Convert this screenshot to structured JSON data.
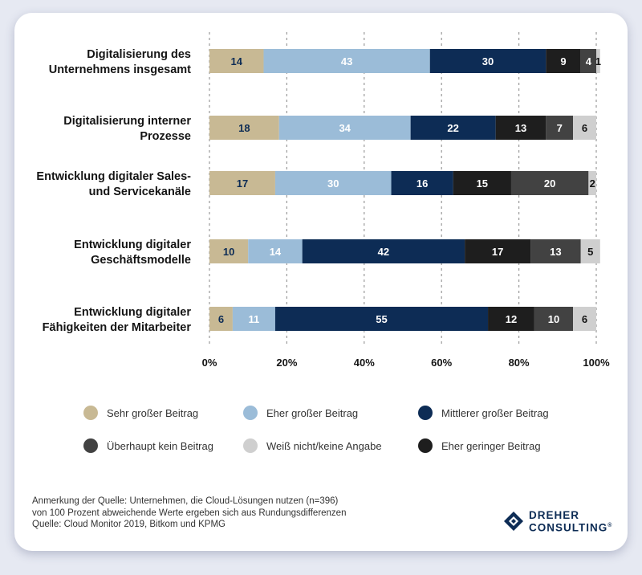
{
  "chart_data": {
    "type": "bar",
    "orientation": "horizontal",
    "stacked": true,
    "categories": [
      [
        "Digitalisierung des",
        "Unternehmens insgesamt"
      ],
      [
        "Digitalisierung interner",
        "Prozesse"
      ],
      [
        "Entwicklung digitaler Sales-",
        "und Servicekanäle"
      ],
      [
        "Entwicklung digitaler",
        "Geschäftsmodelle"
      ],
      [
        "Entwicklung digitaler",
        "Fähigkeiten der Mitarbeiter"
      ]
    ],
    "series": [
      {
        "name": "Sehr großer Beitrag",
        "color": "#c8b994",
        "text_color": "#0d2c55",
        "values": [
          14,
          18,
          17,
          10,
          6
        ]
      },
      {
        "name": "Eher großer Beitrag",
        "color": "#9bbcd8",
        "text_color": "#ffffff",
        "values": [
          43,
          34,
          30,
          14,
          11
        ]
      },
      {
        "name": "Mittlerer großer Beitrag",
        "color": "#0d2c55",
        "text_color": "#ffffff",
        "values": [
          30,
          22,
          16,
          42,
          55
        ]
      },
      {
        "name": "Eher geringer Beitrag",
        "color": "#1e1e1e",
        "text_color": "#ffffff",
        "values": [
          9,
          13,
          15,
          17,
          12
        ]
      },
      {
        "name": "Überhaupt kein Beitrag",
        "color": "#424242",
        "text_color": "#ffffff",
        "values": [
          4,
          7,
          20,
          13,
          10
        ]
      },
      {
        "name": "Weiß nicht/keine Angabe",
        "color": "#cfcfcf",
        "text_color": "#141414",
        "values": [
          1,
          6,
          2,
          5,
          6
        ]
      }
    ],
    "x_ticks": [
      "0%",
      "20%",
      "40%",
      "60%",
      "80%",
      "100%"
    ],
    "xlim": [
      0,
      100
    ],
    "gridlines": "dashed-vertical",
    "legend_order": [
      "Sehr großer Beitrag",
      "Eher großer Beitrag",
      "Mittlerer großer Beitrag",
      "Überhaupt kein Beitrag",
      "Weiß nicht/keine Angabe",
      "Eher geringer Beitrag"
    ]
  },
  "footnote": [
    "Anmerkung der Quelle: Unternehmen, die Cloud-Lösungen nutzen (n=396)",
    "von 100 Prozent abweichende Werte ergeben sich aus Rundungsdifferenzen",
    "Quelle: Cloud Monitor 2019, Bitkom und KPMG"
  ],
  "logo": {
    "line1": "DREHER",
    "line2": "CONSULTING",
    "mark": "®"
  }
}
